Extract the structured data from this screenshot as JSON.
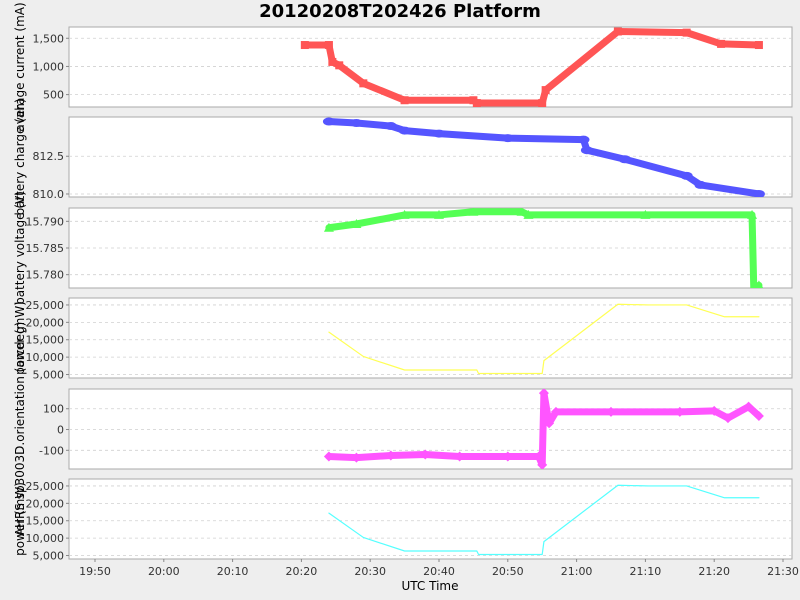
{
  "title": "20120208T202426 Platform",
  "x_axis": {
    "label": "UTC Time",
    "ticks": [
      "19:50",
      "20:00",
      "20:10",
      "20:20",
      "20:30",
      "20:40",
      "20:50",
      "21:00",
      "21:10",
      "21:20",
      "21:30"
    ]
  },
  "colors": {
    "current": "#ff5555",
    "charge": "#5555ff",
    "voltage": "#55ff55",
    "power": "#ffff55",
    "orientation": "#ff55ff",
    "ahrs_power": "#55ffff",
    "grid": "#d0d0d0",
    "plot_bg": "#ffffff",
    "frame": "#aaaaaa"
  },
  "panels": [
    {
      "id": "current",
      "ylabel": "average current (mA)",
      "ticks": [
        "1,500",
        "1,000",
        "500"
      ]
    },
    {
      "id": "charge",
      "ylabel": "battery charge (ah)",
      "ticks": [
        "812.5",
        "810.0"
      ]
    },
    {
      "id": "voltage",
      "ylabel": "battery voltage (V)",
      "ticks": [
        "15.790",
        "15.785",
        "15.780"
      ]
    },
    {
      "id": "power",
      "ylabel": "power (mW)",
      "ticks": [
        "25,000",
        "20,000",
        "15,000",
        "10,000",
        "5,000"
      ]
    },
    {
      "id": "orientation",
      "ylabel": "AHRS sp3003D.orientation (arcdeg)",
      "ticks": [
        "100",
        "0",
        "-100"
      ]
    },
    {
      "id": "ahrs_power",
      "ylabel": "power (mW)",
      "ticks": [
        "25,000",
        "20,000",
        "15,000",
        "10,000",
        "5,000"
      ]
    }
  ],
  "chart_data": [
    {
      "type": "line",
      "title": "20120208T202426 Platform",
      "xlabel": "UTC Time",
      "ylabel": "average current (mA)",
      "ylim": [
        280,
        1700
      ],
      "series": [
        {
          "name": "average current",
          "color": "#ff5555",
          "marker": "square",
          "x": [
            "20:20:30",
            "20:24:00",
            "20:24:30",
            "20:25:30",
            "20:29:00",
            "20:35:00",
            "20:45:00",
            "20:45:30",
            "20:55:00",
            "20:55:30",
            "21:06:00",
            "21:16:00",
            "21:21:00",
            "21:26:30"
          ],
          "values": [
            1380,
            1380,
            1080,
            1020,
            700,
            400,
            400,
            350,
            350,
            580,
            1620,
            1600,
            1400,
            1380
          ]
        }
      ]
    },
    {
      "type": "line",
      "xlabel": "UTC Time",
      "ylabel": "battery charge (ah)",
      "ylim": [
        809.8,
        815.1
      ],
      "series": [
        {
          "name": "battery charge",
          "color": "#5555ff",
          "marker": "circle",
          "x": [
            "20:24:00",
            "20:28:00",
            "20:33:00",
            "20:35:00",
            "20:40:00",
            "20:50:00",
            "21:01:00",
            "21:01:30",
            "21:07:00",
            "21:16:00",
            "21:18:00",
            "21:26:30"
          ],
          "values": [
            814.8,
            814.7,
            814.5,
            814.2,
            814.0,
            813.7,
            813.6,
            812.9,
            812.3,
            811.2,
            810.6,
            810.0
          ]
        }
      ]
    },
    {
      "type": "line",
      "xlabel": "UTC Time",
      "ylabel": "battery voltage (V)",
      "ylim": [
        15.7775,
        15.7925
      ],
      "series": [
        {
          "name": "battery voltage",
          "color": "#55ff55",
          "marker": "triangle",
          "x": [
            "20:24:00",
            "20:28:00",
            "20:35:00",
            "20:40:00",
            "20:45:00",
            "20:52:00",
            "20:53:00",
            "21:10:00",
            "21:25:30",
            "21:25:45",
            "21:26:30"
          ],
          "values": [
            15.7888,
            15.7895,
            15.7912,
            15.7912,
            15.7918,
            15.7918,
            15.7912,
            15.7912,
            15.7912,
            15.7775,
            15.778
          ]
        }
      ]
    },
    {
      "type": "line",
      "xlabel": "UTC Time",
      "ylabel": "power (mW)",
      "ylim": [
        4000,
        27000
      ],
      "series": [
        {
          "name": "power",
          "color": "#ffff55",
          "x": [
            "20:24:00",
            "20:29:00",
            "20:35:00",
            "20:45:30",
            "20:45:45",
            "20:55:00",
            "20:55:15",
            "21:06:00",
            "21:10:30",
            "21:16:00",
            "21:21:30",
            "21:26:30"
          ],
          "values": [
            17200,
            10200,
            6300,
            6300,
            5300,
            5300,
            9000,
            25200,
            25000,
            25000,
            21600,
            21600
          ]
        }
      ]
    },
    {
      "type": "line",
      "xlabel": "UTC Time",
      "ylabel": "AHRS sp3003D.orientation (arcdeg)",
      "ylim": [
        -190,
        195
      ],
      "series": [
        {
          "name": "orientation",
          "color": "#ff55ff",
          "marker": "diamond",
          "x": [
            "20:24:00",
            "20:28:00",
            "20:33:00",
            "20:38:00",
            "20:43:00",
            "20:50:00",
            "20:54:30",
            "20:55:00",
            "20:55:15",
            "20:56:00",
            "20:57:00",
            "21:05:00",
            "21:15:00",
            "21:20:00",
            "21:22:00",
            "21:25:00",
            "21:26:30"
          ],
          "values": [
            -130,
            -135,
            -125,
            -120,
            -130,
            -130,
            -130,
            -170,
            175,
            30,
            85,
            85,
            85,
            90,
            55,
            110,
            65
          ]
        }
      ]
    },
    {
      "type": "line",
      "xlabel": "UTC Time",
      "ylabel": "power (mW)",
      "ylim": [
        4000,
        27000
      ],
      "series": [
        {
          "name": "AHRS power",
          "color": "#55ffff",
          "x": [
            "20:24:00",
            "20:29:00",
            "20:35:00",
            "20:45:30",
            "20:45:45",
            "20:55:00",
            "20:55:15",
            "21:06:00",
            "21:10:30",
            "21:16:00",
            "21:21:30",
            "21:26:30"
          ],
          "values": [
            17200,
            10200,
            6300,
            6300,
            5300,
            5300,
            9000,
            25200,
            25000,
            25000,
            21600,
            21600
          ]
        }
      ]
    }
  ]
}
